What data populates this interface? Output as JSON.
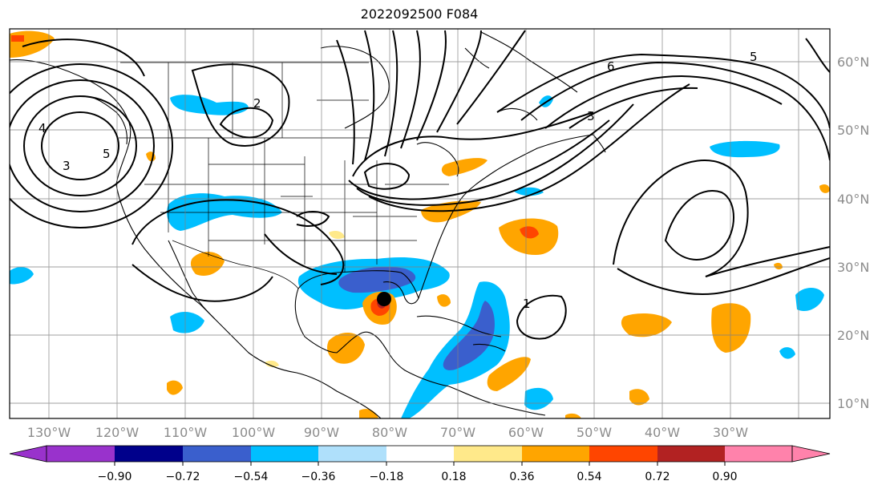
{
  "title": "2022092500 F084",
  "map": {
    "lon_ticks": [
      "130°W",
      "120°W",
      "110°W",
      "100°W",
      "90°W",
      "80°W",
      "70°W",
      "60°W",
      "50°W",
      "40°W",
      "30°W"
    ],
    "lat_ticks": [
      "60°N",
      "50°N",
      "40°N",
      "30°N",
      "20°N",
      "10°N"
    ],
    "contour_labels": [
      "2",
      "5",
      "1",
      "3",
      "6",
      "5",
      "3",
      "4"
    ],
    "storm_marker": "black-dot"
  },
  "colorbar": {
    "ticks": [
      "−0.90",
      "−0.72",
      "−0.54",
      "−0.36",
      "−0.18",
      "0.18",
      "0.36",
      "0.54",
      "0.72",
      "0.90"
    ],
    "colors": [
      "#9932cc",
      "#00008b",
      "#3a5fcd",
      "#00bfff",
      "#afe0fb",
      "#ffffff",
      "#ffe98a",
      "#ffa500",
      "#ff4500",
      "#b22222",
      "#ff82ab"
    ]
  }
}
